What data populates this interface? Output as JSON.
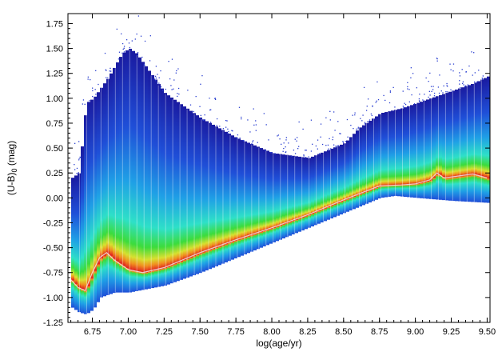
{
  "chart_data": {
    "type": "heatmap",
    "title": "",
    "xlabel": "log(age/yr)",
    "ylabel_main": "(U-B)",
    "ylabel_sub": "0",
    "ylabel_unit": " (mag)",
    "xlim": [
      6.58,
      9.52
    ],
    "ylim": [
      -1.25,
      1.85
    ],
    "x_ticks": [
      6.75,
      7.0,
      7.25,
      7.5,
      7.75,
      8.0,
      8.25,
      8.5,
      8.75,
      9.0,
      9.25,
      9.5
    ],
    "x_tick_labels": [
      "6.75",
      "7.00",
      "7.25",
      "7.50",
      "7.75",
      "8.00",
      "8.25",
      "8.50",
      "8.75",
      "9.00",
      "9.25",
      "9.50"
    ],
    "y_ticks": [
      -1.25,
      -1.0,
      -0.75,
      -0.5,
      -0.25,
      0.0,
      0.25,
      0.5,
      0.75,
      1.0,
      1.25,
      1.5,
      1.75
    ],
    "y_tick_labels": [
      "-1.25",
      "-1.00",
      "-0.75",
      "-0.50",
      "-0.25",
      "0.00",
      "0.25",
      "0.50",
      "0.75",
      "1.00",
      "1.25",
      "1.50",
      "1.75"
    ],
    "colormap": [
      "#1a1aa0",
      "#1f4fd8",
      "#1fa0e6",
      "#2ee0c8",
      "#3cdc3c",
      "#d8e030",
      "#f09020",
      "#e02020",
      "#d84080",
      "#f0f0f0",
      "#101010"
    ],
    "density_ridge": {
      "x": [
        6.6,
        6.65,
        6.7,
        6.75,
        6.8,
        6.85,
        6.9,
        7.0,
        7.1,
        7.25,
        7.5,
        7.75,
        8.0,
        8.25,
        8.5,
        8.75,
        8.9,
        9.0,
        9.1,
        9.15,
        9.2,
        9.3,
        9.4,
        9.45,
        9.5
      ],
      "y": [
        -0.82,
        -0.9,
        -0.93,
        -0.75,
        -0.6,
        -0.55,
        -0.62,
        -0.72,
        -0.75,
        -0.7,
        -0.55,
        -0.42,
        -0.3,
        -0.17,
        -0.02,
        0.12,
        0.13,
        0.14,
        0.18,
        0.25,
        0.2,
        0.22,
        0.24,
        0.22,
        0.2
      ]
    },
    "upper_envelope": {
      "x": [
        6.6,
        6.65,
        6.7,
        6.75,
        6.85,
        6.95,
        7.0,
        7.05,
        7.15,
        7.25,
        7.5,
        7.75,
        8.0,
        8.25,
        8.5,
        8.6,
        8.75,
        8.9,
        9.0,
        9.1,
        9.2,
        9.3,
        9.4,
        9.5
      ],
      "y": [
        0.2,
        0.25,
        0.95,
        1.0,
        1.2,
        1.45,
        1.5,
        1.45,
        1.25,
        1.05,
        0.8,
        0.6,
        0.45,
        0.4,
        0.55,
        0.7,
        0.85,
        0.9,
        0.95,
        1.0,
        1.05,
        1.1,
        1.15,
        1.22
      ]
    },
    "lower_envelope": {
      "x": [
        6.6,
        6.65,
        6.7,
        6.75,
        6.8,
        6.9,
        7.0,
        7.25,
        7.5,
        7.75,
        8.0,
        8.25,
        8.5,
        8.75,
        8.85,
        9.0,
        9.25,
        9.5
      ],
      "y": [
        -1.1,
        -1.15,
        -1.17,
        -1.12,
        -1.0,
        -0.95,
        -0.95,
        -0.88,
        -0.75,
        -0.6,
        -0.45,
        -0.3,
        -0.15,
        0.0,
        0.02,
        0.0,
        -0.03,
        -0.05
      ]
    }
  }
}
